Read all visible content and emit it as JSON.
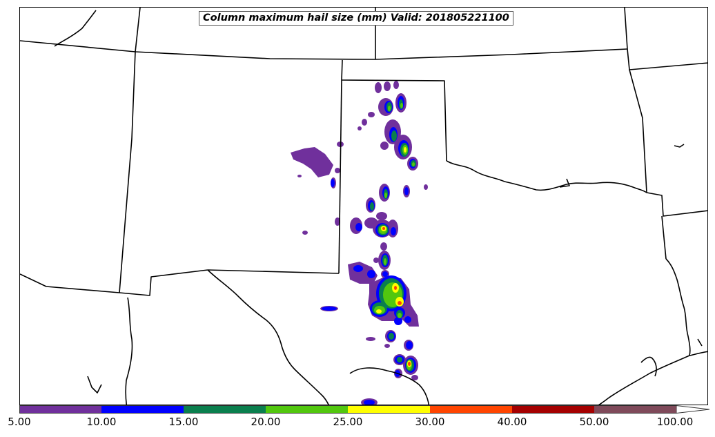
{
  "title": "Column maximum hail size (mm) Valid: 201805221100",
  "colorbar": {
    "segments": [
      {
        "from": "5.00",
        "to": "10.00",
        "color": "#70309c"
      },
      {
        "from": "10.00",
        "to": "15.00",
        "color": "#0000ff"
      },
      {
        "from": "15.00",
        "to": "20.00",
        "color": "#0a7f4e"
      },
      {
        "from": "20.00",
        "to": "25.00",
        "color": "#52c70e"
      },
      {
        "from": "25.00",
        "to": "30.00",
        "color": "#ffff00"
      },
      {
        "from": "30.00",
        "to": "40.00",
        "color": "#ff4500"
      },
      {
        "from": "40.00",
        "to": "50.00",
        "color": "#a50000"
      },
      {
        "from": "50.00",
        "to": "100.00",
        "color": "#7f4a5a"
      }
    ],
    "tick_labels": [
      "5.00",
      "10.00",
      "15.00",
      "20.00",
      "25.00",
      "30.00",
      "40.00",
      "50.00",
      "100.00"
    ]
  },
  "map": {
    "boundary_color": "#000000",
    "field": "Column maximum hail size",
    "units": "mm"
  }
}
